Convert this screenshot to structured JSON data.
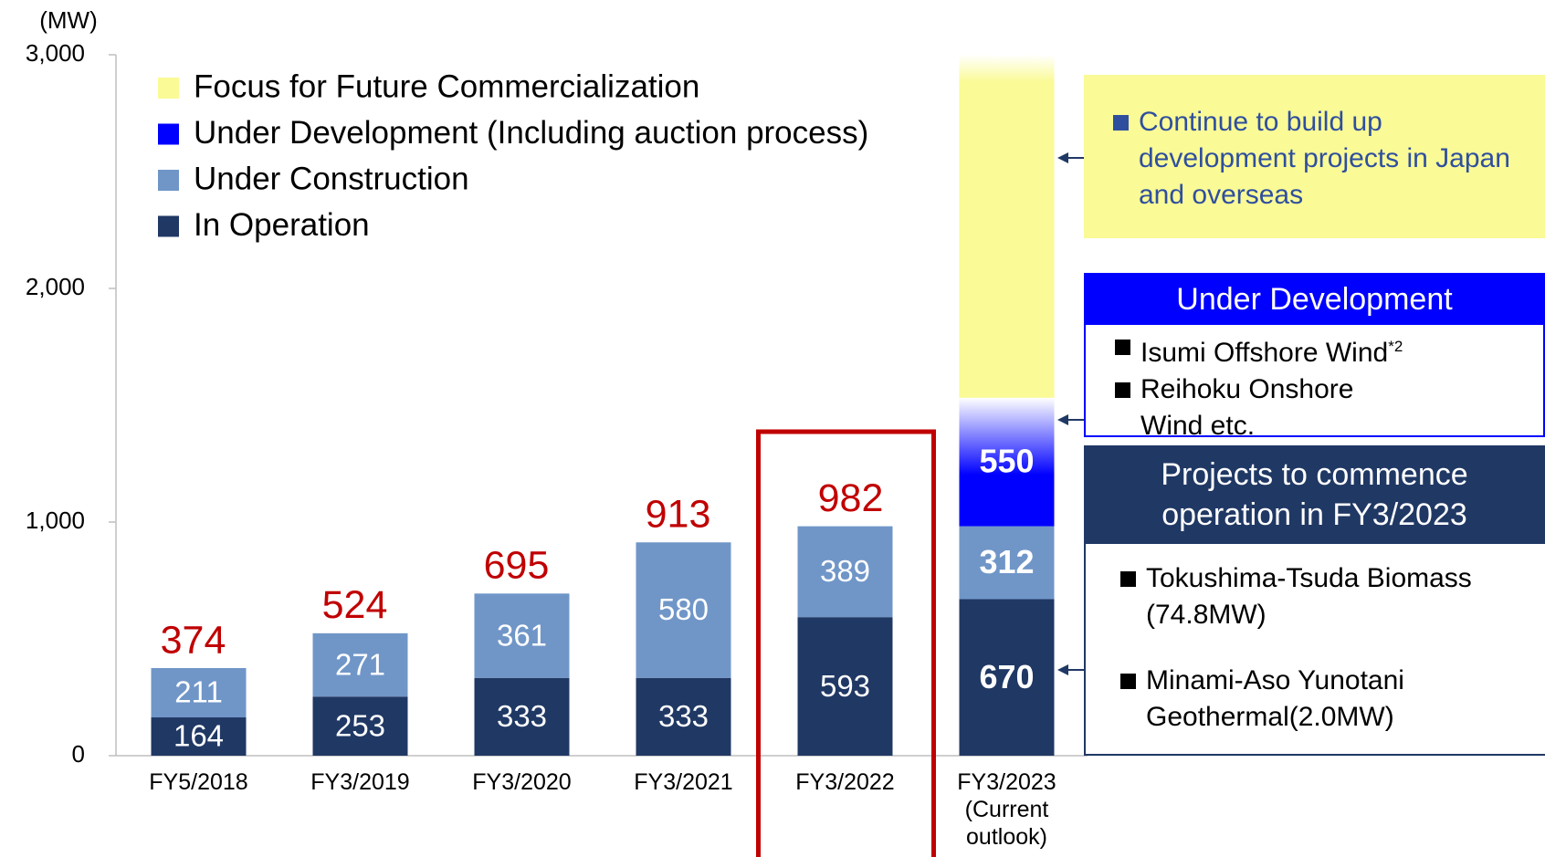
{
  "chart_data": {
    "type": "bar",
    "stacked": true,
    "y_unit": "(MW)",
    "categories": [
      "FY5/2018",
      "FY3/2019",
      "FY3/2020",
      "FY3/2021",
      "FY3/2022",
      "FY3/2023 (Current outlook)"
    ],
    "series": [
      {
        "name": "In Operation",
        "color": "#203864",
        "values": [
          164,
          253,
          333,
          333,
          593,
          670
        ]
      },
      {
        "name": "Under Construction",
        "color": "#7096c8",
        "values": [
          211,
          271,
          361,
          580,
          389,
          312
        ]
      },
      {
        "name": "Under Development (Including auction process)",
        "color": "#0000ff",
        "gradient": true,
        "values": [
          null,
          null,
          null,
          null,
          null,
          550
        ]
      },
      {
        "name": "Focus for Future Commercialization",
        "color": "#fafa96",
        "gradient": true,
        "labels": false,
        "values": [
          null,
          null,
          null,
          null,
          null,
          1468
        ]
      }
    ],
    "totals": {
      "color": "#c00000",
      "values": [
        374,
        524,
        695,
        913,
        982,
        null
      ]
    },
    "ylim": [
      0,
      3000
    ],
    "yticks": [
      0,
      {
        "value": 1000,
        "label": "1,000"
      },
      {
        "value": 2000,
        "label": "2,000"
      },
      {
        "value": 3000,
        "label": "3,000"
      }
    ],
    "legend": "top-left",
    "annotations": {
      "future": {
        "bullets": [
          "Continue to build up development projects in Japan and overseas"
        ]
      },
      "development": {
        "header": "Under Development",
        "bullets": [
          "Isumi Offshore Wind",
          "Reihoku Onshore Wind etc."
        ],
        "footnote_mark": "*2"
      },
      "projects": {
        "header": "Projects to commence operation in FY3/2023",
        "bullets": [
          "Tokushima-Tsuda Biomass (74.8MW)",
          "Minami-Aso Yunotani Geothermal(2.0MW)"
        ]
      }
    }
  }
}
